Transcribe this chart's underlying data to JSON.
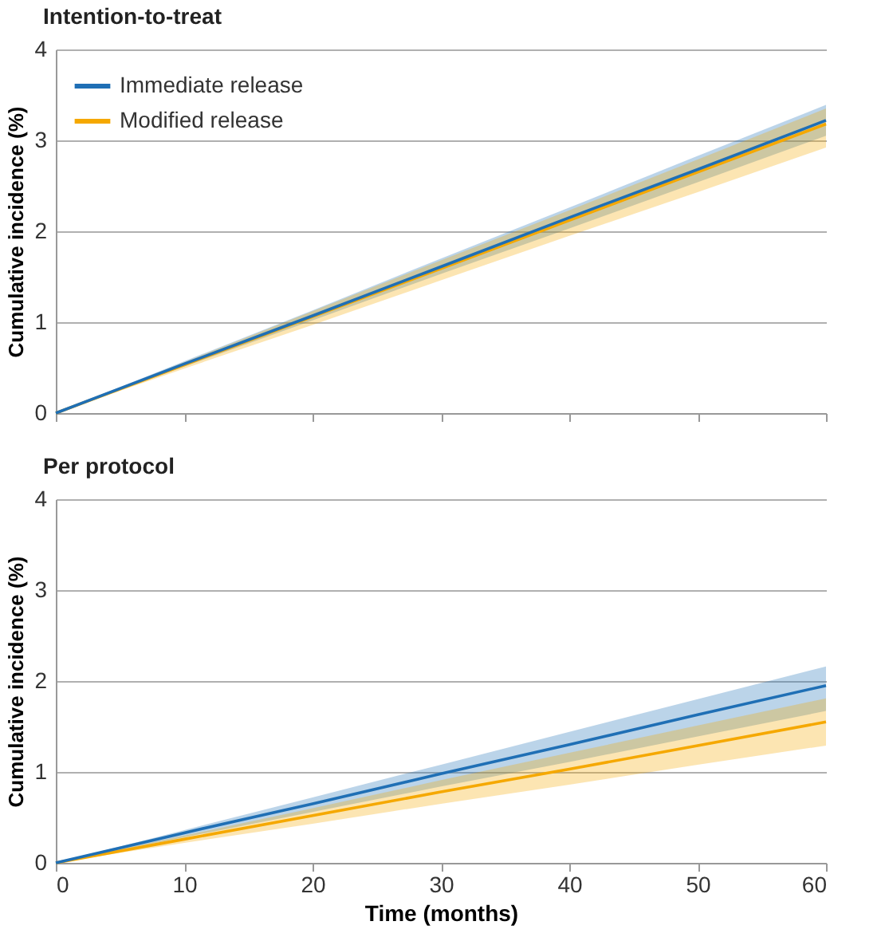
{
  "chart_data": [
    {
      "type": "line",
      "title": "Intention-to-treat",
      "ylabel": "Cumulative incidence (%)",
      "x": [
        0,
        10,
        20,
        30,
        40,
        50,
        60
      ],
      "xlim": [
        0,
        60
      ],
      "xticks": [
        0,
        10,
        20,
        30,
        40,
        50,
        60
      ],
      "ylim": [
        0,
        4
      ],
      "yticks": [
        0,
        1,
        2,
        3,
        4
      ],
      "grid": "y",
      "legend": "top left",
      "tick_labels": "y",
      "series": [
        {
          "name": "Immediate release",
          "color": "#1f6fb5",
          "values": [
            0,
            0.54,
            1.07,
            1.61,
            2.15,
            2.68,
            3.22
          ],
          "lower": [
            0,
            0.51,
            1.02,
            1.53,
            2.03,
            2.54,
            3.05
          ],
          "upper": [
            0,
            0.57,
            1.13,
            1.7,
            2.26,
            2.83,
            3.39
          ]
        },
        {
          "name": "Modified release",
          "color": "#f5a800",
          "values": [
            0,
            0.53,
            1.06,
            1.59,
            2.12,
            2.65,
            3.18
          ],
          "lower": [
            0,
            0.49,
            0.97,
            1.46,
            1.95,
            2.43,
            2.92
          ],
          "upper": [
            0,
            0.56,
            1.12,
            1.68,
            2.23,
            2.79,
            3.35
          ]
        }
      ]
    },
    {
      "type": "line",
      "title": "Per protocol",
      "xlabel": "Time (months)",
      "ylabel": "Cumulative incidence (%)",
      "x": [
        0,
        10,
        20,
        30,
        40,
        50,
        60
      ],
      "xlim": [
        0,
        60
      ],
      "xticks": [
        0,
        10,
        20,
        30,
        40,
        50,
        60
      ],
      "ylim": [
        0,
        4
      ],
      "yticks": [
        0,
        1,
        2,
        3,
        4
      ],
      "grid": "y",
      "series": [
        {
          "color": "#1f6fb5",
          "values": [
            0,
            0.33,
            0.65,
            0.98,
            1.3,
            1.63,
            1.95
          ],
          "lower": [
            0,
            0.28,
            0.56,
            0.84,
            1.11,
            1.39,
            1.67
          ],
          "upper": [
            0,
            0.36,
            0.72,
            1.08,
            1.44,
            1.8,
            2.16
          ]
        },
        {
          "color": "#f5a800",
          "values": [
            0,
            0.26,
            0.52,
            0.78,
            1.03,
            1.29,
            1.55
          ],
          "lower": [
            0,
            0.22,
            0.43,
            0.65,
            0.86,
            1.08,
            1.29
          ],
          "upper": [
            0,
            0.3,
            0.6,
            0.91,
            1.21,
            1.51,
            1.81
          ]
        }
      ]
    }
  ]
}
